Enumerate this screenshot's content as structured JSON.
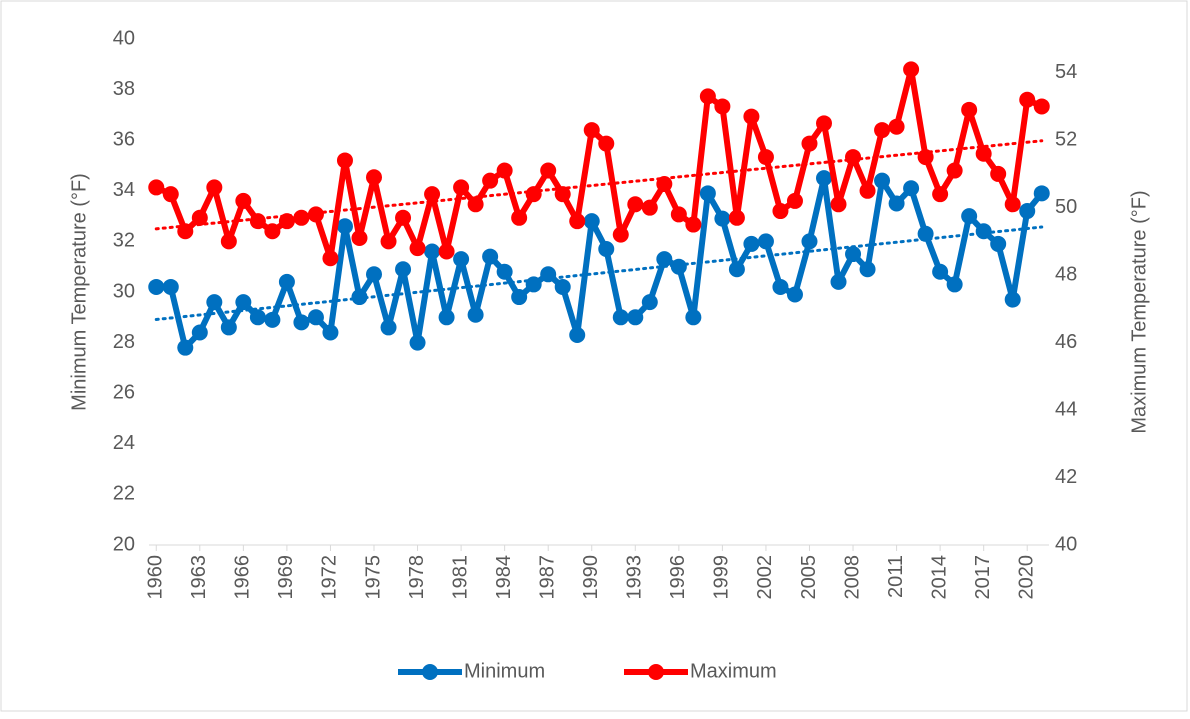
{
  "chart_data": {
    "type": "line",
    "x": [
      1960,
      1961,
      1962,
      1963,
      1964,
      1965,
      1966,
      1967,
      1968,
      1969,
      1970,
      1971,
      1972,
      1973,
      1974,
      1975,
      1976,
      1977,
      1978,
      1979,
      1980,
      1981,
      1982,
      1983,
      1984,
      1985,
      1986,
      1987,
      1988,
      1989,
      1990,
      1991,
      1992,
      1993,
      1994,
      1995,
      1996,
      1997,
      1998,
      1999,
      2000,
      2001,
      2002,
      2003,
      2004,
      2005,
      2006,
      2007,
      2008,
      2009,
      2010,
      2011,
      2012,
      2013,
      2014,
      2015,
      2016,
      2017,
      2018,
      2019,
      2020,
      2021
    ],
    "xlim": [
      1959.5,
      2021.5
    ],
    "xticks": [
      1960,
      1963,
      1966,
      1969,
      1972,
      1975,
      1978,
      1981,
      1984,
      1987,
      1990,
      1993,
      1996,
      1999,
      2002,
      2005,
      2008,
      2011,
      2014,
      2017,
      2020
    ],
    "ylabel": "Minimum Temperature (°F)",
    "y2label": "Maximum Temperature (°F)",
    "ylim": [
      20,
      40
    ],
    "yticks": [
      20,
      22,
      24,
      26,
      28,
      30,
      32,
      34,
      36,
      38,
      40
    ],
    "y2lim": [
      40,
      55
    ],
    "y2ticks": [
      40,
      42,
      44,
      46,
      48,
      50,
      52,
      54
    ],
    "trendline": true,
    "series": [
      {
        "name": "Minimum",
        "color": "#0070c0",
        "axis": "y",
        "values": [
          30.2,
          30.2,
          27.8,
          28.4,
          29.6,
          28.6,
          29.6,
          29.0,
          28.9,
          30.4,
          28.8,
          29.0,
          28.4,
          32.6,
          29.8,
          30.7,
          28.6,
          30.9,
          28.0,
          31.6,
          29.0,
          31.3,
          29.1,
          31.4,
          30.8,
          29.8,
          30.3,
          30.7,
          30.2,
          28.3,
          32.8,
          31.7,
          29.0,
          29.0,
          29.6,
          31.3,
          31.0,
          29.0,
          33.9,
          32.9,
          30.9,
          31.9,
          32.0,
          30.2,
          29.9,
          32.0,
          34.5,
          30.4,
          31.5,
          30.9,
          34.4,
          33.5,
          34.1,
          32.3,
          30.8,
          30.3,
          33.0,
          32.4,
          31.9,
          29.7,
          33.2,
          33.9
        ]
      },
      {
        "name": "Maximum",
        "color": "#ff0000",
        "axis": "y2",
        "values": [
          50.6,
          50.4,
          49.3,
          49.7,
          50.6,
          49.0,
          50.2,
          49.6,
          49.3,
          49.6,
          49.7,
          49.8,
          48.5,
          51.4,
          49.1,
          50.9,
          49.0,
          49.7,
          48.8,
          50.4,
          48.7,
          50.6,
          50.1,
          50.8,
          51.1,
          49.7,
          50.4,
          51.1,
          50.4,
          49.6,
          52.3,
          51.9,
          49.2,
          50.1,
          50.0,
          50.7,
          49.8,
          49.5,
          53.3,
          53.0,
          49.7,
          52.7,
          51.5,
          49.9,
          50.2,
          51.9,
          52.5,
          50.1,
          51.5,
          50.5,
          52.3,
          52.4,
          54.1,
          51.5,
          50.4,
          51.1,
          52.9,
          51.6,
          51.0,
          50.1,
          53.2,
          53.0
        ]
      }
    ]
  }
}
